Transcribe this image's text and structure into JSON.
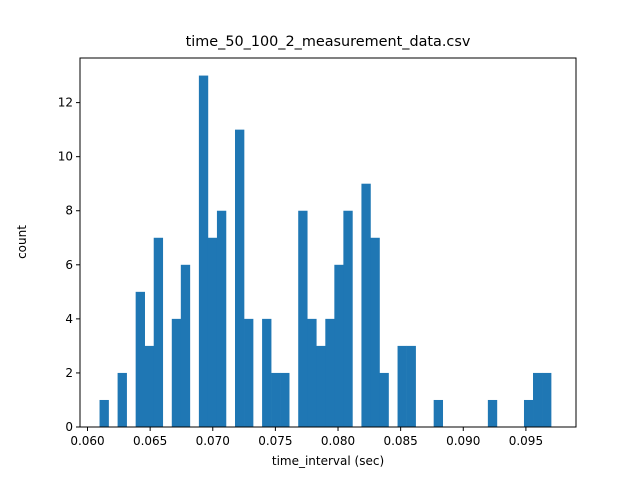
{
  "chart_data": {
    "type": "bar",
    "subtype": "histogram",
    "title": "time_50_100_2_measurement_data.csv",
    "xlabel": "time_interval (sec)",
    "ylabel": "count",
    "xlim": [
      0.0594,
      0.099
    ],
    "ylim": [
      0,
      13.65
    ],
    "xticks": [
      "0.060",
      "0.065",
      "0.070",
      "0.075",
      "0.080",
      "0.085",
      "0.090",
      "0.095"
    ],
    "xtick_values": [
      0.06,
      0.065,
      0.07,
      0.075,
      0.08,
      0.085,
      0.09,
      0.095
    ],
    "yticks": [
      "0",
      "2",
      "4",
      "6",
      "8",
      "10",
      "12"
    ],
    "ytick_values": [
      0,
      2,
      4,
      6,
      8,
      10,
      12
    ],
    "bins": 50,
    "bin_start": 0.06096,
    "bin_width": 0.000721,
    "values": [
      1,
      0,
      2,
      0,
      5,
      3,
      7,
      0,
      4,
      6,
      0,
      13,
      7,
      8,
      0,
      11,
      4,
      0,
      4,
      2,
      2,
      0,
      8,
      4,
      3,
      4,
      6,
      8,
      0,
      9,
      7,
      2,
      0,
      3,
      3,
      0,
      0,
      1,
      0,
      0,
      0,
      0,
      0,
      1,
      0,
      0,
      0,
      1,
      2,
      2
    ],
    "color": "#1f77b4",
    "grid": false,
    "legend": null
  }
}
